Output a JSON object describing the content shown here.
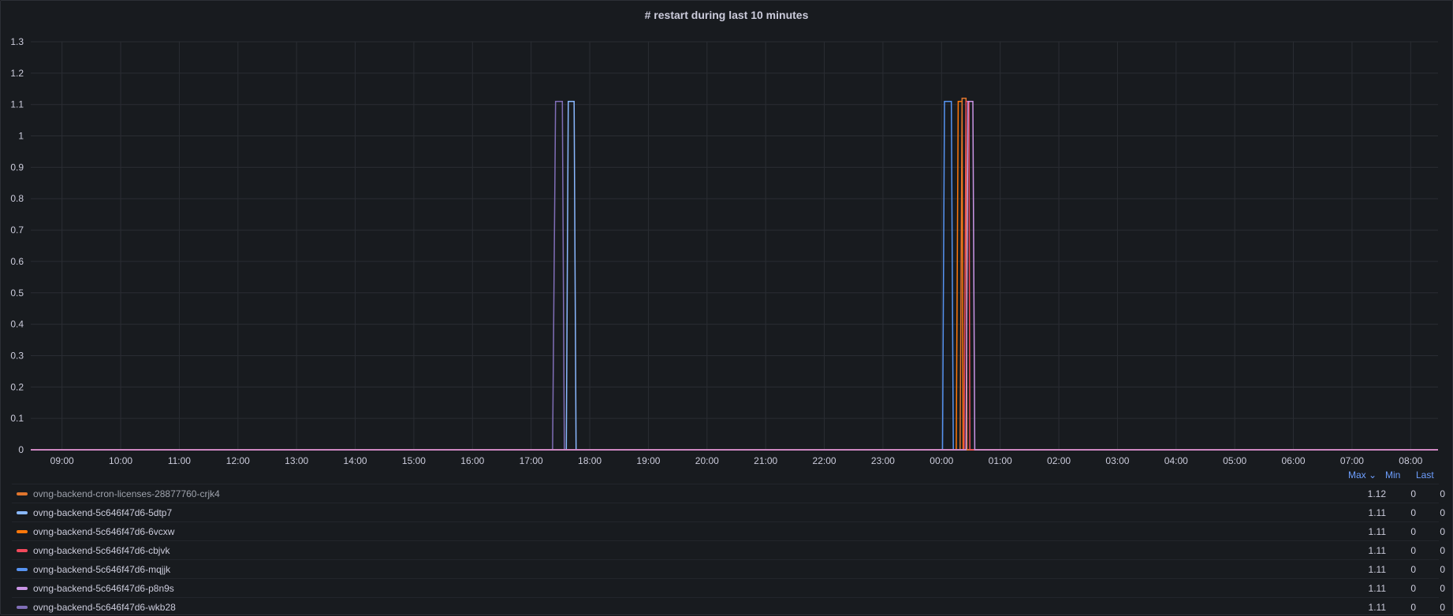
{
  "panel": {
    "title": "# restart during last 10 minutes"
  },
  "legend": {
    "headers": {
      "max": "Max ⌄",
      "min": "Min",
      "last": "Last"
    },
    "rows": [
      {
        "name": "ovng-backend-cron-licenses-28877760-crjk4",
        "color": "#e0752d",
        "max": "1.12",
        "min": "0",
        "last": "0",
        "dim": true
      },
      {
        "name": "ovng-backend-5c646f47d6-5dtp7",
        "color": "#8ab8ff",
        "max": "1.11",
        "min": "0",
        "last": "0",
        "dim": false
      },
      {
        "name": "ovng-backend-5c646f47d6-6vcxw",
        "color": "#ff780a",
        "max": "1.11",
        "min": "0",
        "last": "0",
        "dim": false
      },
      {
        "name": "ovng-backend-5c646f47d6-cbjvk",
        "color": "#f2495c",
        "max": "1.11",
        "min": "0",
        "last": "0",
        "dim": false
      },
      {
        "name": "ovng-backend-5c646f47d6-mqjjk",
        "color": "#5794f2",
        "max": "1.11",
        "min": "0",
        "last": "0",
        "dim": false
      },
      {
        "name": "ovng-backend-5c646f47d6-p8n9s",
        "color": "#ca95e5",
        "max": "1.11",
        "min": "0",
        "last": "0",
        "dim": false
      },
      {
        "name": "ovng-backend-5c646f47d6-wkb28",
        "color": "#806eb7",
        "max": "1.11",
        "min": "0",
        "last": "0",
        "dim": false
      }
    ]
  },
  "chart_data": {
    "type": "line",
    "title": "# restart during last 10 minutes",
    "xlabel": "",
    "ylabel": "",
    "x_range": [
      "08:28",
      "08:28 (+1 day)"
    ],
    "x_ticks": [
      "09:00",
      "10:00",
      "11:00",
      "12:00",
      "13:00",
      "14:00",
      "15:00",
      "16:00",
      "17:00",
      "18:00",
      "19:00",
      "20:00",
      "21:00",
      "22:00",
      "23:00",
      "00:00",
      "01:00",
      "02:00",
      "03:00",
      "04:00",
      "05:00",
      "06:00",
      "07:00",
      "08:00"
    ],
    "ylim": [
      0,
      1.3
    ],
    "y_ticks": [
      "0",
      "0.1",
      "0.2",
      "0.3",
      "0.4",
      "0.5",
      "0.6",
      "0.7",
      "0.8",
      "0.9",
      "1",
      "1.1",
      "1.2",
      "1.3"
    ],
    "grid": true,
    "legend_placement": "bottom",
    "baseline_value": 0,
    "series": [
      {
        "name": "ovng-backend-5c646f47d6-wkb28",
        "color": "#806eb7",
        "pulses": [
          {
            "rise": "17:22",
            "top_start": "17:25",
            "top_end": "17:32",
            "fall": "17:34",
            "value": 1.11
          }
        ]
      },
      {
        "name": "ovng-backend-5c646f47d6-5dtp7",
        "color": "#8ab8ff",
        "pulses": [
          {
            "rise": "17:36",
            "top_start": "17:38",
            "top_end": "17:44",
            "fall": "17:46",
            "value": 1.11
          }
        ]
      },
      {
        "name": "ovng-backend-5c646f47d6-mqjjk",
        "color": "#5794f2",
        "pulses": [
          {
            "rise": "00:01",
            "top_start": "00:03",
            "top_end": "00:10",
            "fall": "00:12",
            "value": 1.11
          }
        ]
      },
      {
        "name": "ovng-backend-5c646f47d6-6vcxw",
        "color": "#ff780a",
        "pulses": [
          {
            "rise": "00:15",
            "top_start": "00:17",
            "top_end": "00:21",
            "fall": "00:22",
            "value": 1.11
          }
        ]
      },
      {
        "name": "ovng-backend-cron-licenses-28877760-crjk4",
        "color": "#e0752d",
        "pulses": [
          {
            "rise": "00:19",
            "top_start": "00:21",
            "top_end": "00:25",
            "fall": "00:26",
            "value": 1.12
          }
        ]
      },
      {
        "name": "ovng-backend-5c646f47d6-cbjvk",
        "color": "#f2495c",
        "pulses": [
          {
            "rise": "00:23",
            "top_start": "00:25",
            "top_end": "00:28",
            "fall": "00:29",
            "value": 1.11
          }
        ]
      },
      {
        "name": "ovng-backend-5c646f47d6-p8n9s",
        "color": "#ca95e5",
        "pulses": [
          {
            "rise": "00:25",
            "top_start": "00:27",
            "top_end": "00:32",
            "fall": "00:34",
            "value": 1.11
          }
        ]
      }
    ]
  }
}
